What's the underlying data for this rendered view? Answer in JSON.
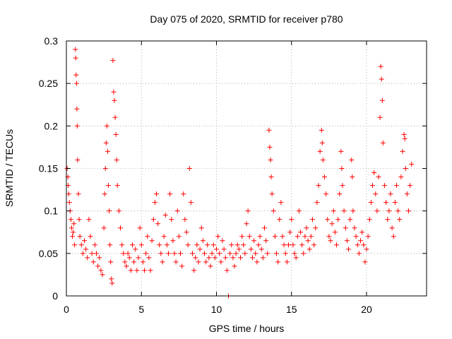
{
  "chart_data": {
    "type": "scatter",
    "title": "Day 075 of 2020, SRMTID for receiver p780",
    "xlabel": "GPS time / hours",
    "ylabel": "SRMTID / TECUs",
    "xlim": [
      0,
      24
    ],
    "ylim": [
      0,
      0.3
    ],
    "xticks": [
      0,
      5,
      10,
      15,
      20
    ],
    "xtick_labels": [
      "0",
      "5",
      "10",
      "15",
      "20"
    ],
    "yticks": [
      0,
      0.05,
      0.1,
      0.15,
      0.2,
      0.25,
      0.3
    ],
    "ytick_labels": [
      "0",
      "0.05",
      "0.1",
      "0.15",
      "0.2",
      "0.25",
      "0.3"
    ],
    "grid": true,
    "marker": "+",
    "series": [
      {
        "name": "SRMTID",
        "color": "#ff0000",
        "points": [
          [
            0.05,
            0.15
          ],
          [
            0.1,
            0.14
          ],
          [
            0.12,
            0.13
          ],
          [
            0.15,
            0.12
          ],
          [
            0.2,
            0.11
          ],
          [
            0.25,
            0.1
          ],
          [
            0.3,
            0.09
          ],
          [
            0.35,
            0.08
          ],
          [
            0.4,
            0.07
          ],
          [
            0.45,
            0.075
          ],
          [
            0.5,
            0.085
          ],
          [
            0.55,
            0.06
          ],
          [
            0.6,
            0.29
          ],
          [
            0.62,
            0.28
          ],
          [
            0.65,
            0.26
          ],
          [
            0.68,
            0.25
          ],
          [
            0.7,
            0.22
          ],
          [
            0.72,
            0.2
          ],
          [
            0.75,
            0.16
          ],
          [
            0.8,
            0.12
          ],
          [
            0.85,
            0.09
          ],
          [
            0.9,
            0.07
          ],
          [
            1.0,
            0.06
          ],
          [
            1.1,
            0.05
          ],
          [
            1.2,
            0.065
          ],
          [
            1.3,
            0.055
          ],
          [
            1.4,
            0.045
          ],
          [
            1.5,
            0.09
          ],
          [
            1.6,
            0.07
          ],
          [
            1.7,
            0.05
          ],
          [
            1.8,
            0.04
          ],
          [
            1.9,
            0.06
          ],
          [
            2.0,
            0.05
          ],
          [
            2.1,
            0.035
          ],
          [
            2.2,
            0.045
          ],
          [
            2.3,
            0.03
          ],
          [
            2.4,
            0.025
          ],
          [
            2.5,
            0.08
          ],
          [
            2.55,
            0.12
          ],
          [
            2.6,
            0.15
          ],
          [
            2.65,
            0.18
          ],
          [
            2.7,
            0.2
          ],
          [
            2.75,
            0.17
          ],
          [
            2.8,
            0.13
          ],
          [
            2.85,
            0.1
          ],
          [
            2.9,
            0.06
          ],
          [
            2.95,
            0.04
          ],
          [
            3.0,
            0.02
          ],
          [
            3.05,
            0.015
          ],
          [
            3.1,
            0.277
          ],
          [
            3.15,
            0.24
          ],
          [
            3.2,
            0.23
          ],
          [
            3.25,
            0.21
          ],
          [
            3.3,
            0.19
          ],
          [
            3.35,
            0.16
          ],
          [
            3.4,
            0.13
          ],
          [
            3.5,
            0.1
          ],
          [
            3.6,
            0.08
          ],
          [
            3.7,
            0.06
          ],
          [
            3.8,
            0.05
          ],
          [
            3.9,
            0.04
          ],
          [
            4.0,
            0.035
          ],
          [
            4.1,
            0.05
          ],
          [
            4.2,
            0.045
          ],
          [
            4.3,
            0.03
          ],
          [
            4.4,
            0.06
          ],
          [
            4.5,
            0.04
          ],
          [
            4.6,
            0.055
          ],
          [
            4.7,
            0.03
          ],
          [
            4.8,
            0.045
          ],
          [
            4.9,
            0.08
          ],
          [
            5.0,
            0.06
          ],
          [
            5.1,
            0.04
          ],
          [
            5.2,
            0.03
          ],
          [
            5.3,
            0.05
          ],
          [
            5.4,
            0.07
          ],
          [
            5.5,
            0.045
          ],
          [
            5.6,
            0.03
          ],
          [
            5.7,
            0.065
          ],
          [
            5.8,
            0.09
          ],
          [
            5.9,
            0.11
          ],
          [
            6.0,
            0.12
          ],
          [
            6.1,
            0.085
          ],
          [
            6.2,
            0.06
          ],
          [
            6.3,
            0.05
          ],
          [
            6.4,
            0.04
          ],
          [
            6.5,
            0.07
          ],
          [
            6.6,
            0.095
          ],
          [
            6.7,
            0.06
          ],
          [
            6.8,
            0.05
          ],
          [
            6.9,
            0.12
          ],
          [
            7.0,
            0.09
          ],
          [
            7.1,
            0.065
          ],
          [
            7.2,
            0.05
          ],
          [
            7.3,
            0.04
          ],
          [
            7.4,
            0.1
          ],
          [
            7.5,
            0.07
          ],
          [
            7.6,
            0.05
          ],
          [
            7.7,
            0.035
          ],
          [
            7.8,
            0.12
          ],
          [
            7.9,
            0.09
          ],
          [
            8.0,
            0.075
          ],
          [
            8.1,
            0.06
          ],
          [
            8.2,
            0.15
          ],
          [
            8.3,
            0.11
          ],
          [
            8.4,
            0.05
          ],
          [
            8.5,
            0.03
          ],
          [
            8.6,
            0.045
          ],
          [
            8.7,
            0.06
          ],
          [
            8.8,
            0.04
          ],
          [
            8.9,
            0.055
          ],
          [
            9.0,
            0.08
          ],
          [
            9.1,
            0.065
          ],
          [
            9.2,
            0.05
          ],
          [
            9.3,
            0.04
          ],
          [
            9.4,
            0.06
          ],
          [
            9.5,
            0.045
          ],
          [
            9.6,
            0.035
          ],
          [
            9.7,
            0.05
          ],
          [
            9.8,
            0.06
          ],
          [
            9.9,
            0.045
          ],
          [
            10.0,
            0.055
          ],
          [
            10.1,
            0.07
          ],
          [
            10.2,
            0.05
          ],
          [
            10.3,
            0.04
          ],
          [
            10.4,
            0.065
          ],
          [
            10.5,
            0.055
          ],
          [
            10.6,
            0.045
          ],
          [
            10.7,
            0.03
          ],
          [
            10.8,
            0.0
          ],
          [
            10.9,
            0.05
          ],
          [
            11.0,
            0.06
          ],
          [
            11.1,
            0.045
          ],
          [
            11.2,
            0.035
          ],
          [
            11.3,
            0.05
          ],
          [
            11.4,
            0.06
          ],
          [
            11.5,
            0.055
          ],
          [
            11.6,
            0.045
          ],
          [
            11.7,
            0.07
          ],
          [
            11.8,
            0.06
          ],
          [
            11.9,
            0.05
          ],
          [
            12.0,
            0.085
          ],
          [
            12.1,
            0.1
          ],
          [
            12.2,
            0.07
          ],
          [
            12.3,
            0.055
          ],
          [
            12.4,
            0.045
          ],
          [
            12.5,
            0.065
          ],
          [
            12.6,
            0.05
          ],
          [
            12.7,
            0.04
          ],
          [
            12.8,
            0.06
          ],
          [
            12.9,
            0.07
          ],
          [
            13.0,
            0.055
          ],
          [
            13.1,
            0.045
          ],
          [
            13.2,
            0.08
          ],
          [
            13.3,
            0.065
          ],
          [
            13.4,
            0.05
          ],
          [
            13.5,
            0.195
          ],
          [
            13.55,
            0.175
          ],
          [
            13.6,
            0.16
          ],
          [
            13.65,
            0.14
          ],
          [
            13.7,
            0.12
          ],
          [
            13.8,
            0.1
          ],
          [
            13.9,
            0.07
          ],
          [
            14.0,
            0.05
          ],
          [
            14.1,
            0.04
          ],
          [
            14.2,
            0.09
          ],
          [
            14.3,
            0.11
          ],
          [
            14.4,
            0.07
          ],
          [
            14.5,
            0.06
          ],
          [
            14.6,
            0.05
          ],
          [
            14.7,
            0.04
          ],
          [
            14.8,
            0.06
          ],
          [
            14.9,
            0.075
          ],
          [
            15.0,
            0.09
          ],
          [
            15.1,
            0.06
          ],
          [
            15.2,
            0.05
          ],
          [
            15.3,
            0.045
          ],
          [
            15.4,
            0.07
          ],
          [
            15.5,
            0.1
          ],
          [
            15.6,
            0.075
          ],
          [
            15.7,
            0.06
          ],
          [
            15.8,
            0.05
          ],
          [
            15.9,
            0.07
          ],
          [
            16.0,
            0.08
          ],
          [
            16.1,
            0.065
          ],
          [
            16.2,
            0.055
          ],
          [
            16.3,
            0.07
          ],
          [
            16.4,
            0.09
          ],
          [
            16.5,
            0.06
          ],
          [
            16.6,
            0.08
          ],
          [
            16.7,
            0.11
          ],
          [
            16.8,
            0.13
          ],
          [
            16.9,
            0.17
          ],
          [
            17.0,
            0.195
          ],
          [
            17.05,
            0.18
          ],
          [
            17.1,
            0.16
          ],
          [
            17.2,
            0.14
          ],
          [
            17.3,
            0.12
          ],
          [
            17.4,
            0.09
          ],
          [
            17.5,
            0.07
          ],
          [
            17.6,
            0.065
          ],
          [
            17.7,
            0.085
          ],
          [
            17.8,
            0.1
          ],
          [
            17.9,
            0.075
          ],
          [
            18.0,
            0.06
          ],
          [
            18.1,
            0.09
          ],
          [
            18.2,
            0.12
          ],
          [
            18.3,
            0.17
          ],
          [
            18.35,
            0.15
          ],
          [
            18.4,
            0.13
          ],
          [
            18.5,
            0.1
          ],
          [
            18.6,
            0.08
          ],
          [
            18.7,
            0.065
          ],
          [
            18.8,
            0.055
          ],
          [
            18.9,
            0.09
          ],
          [
            19.0,
            0.16
          ],
          [
            19.05,
            0.14
          ],
          [
            19.1,
            0.1
          ],
          [
            19.2,
            0.08
          ],
          [
            19.3,
            0.07
          ],
          [
            19.4,
            0.06
          ],
          [
            19.5,
            0.05
          ],
          [
            19.6,
            0.065
          ],
          [
            19.7,
            0.075
          ],
          [
            19.8,
            0.06
          ],
          [
            19.9,
            0.04
          ],
          [
            20.0,
            0.055
          ],
          [
            20.1,
            0.07
          ],
          [
            20.2,
            0.09
          ],
          [
            20.3,
            0.11
          ],
          [
            20.4,
            0.13
          ],
          [
            20.5,
            0.145
          ],
          [
            20.6,
            0.12
          ],
          [
            20.7,
            0.1
          ],
          [
            20.8,
            0.14
          ],
          [
            20.9,
            0.21
          ],
          [
            20.95,
            0.27
          ],
          [
            21.0,
            0.255
          ],
          [
            21.05,
            0.23
          ],
          [
            21.1,
            0.18
          ],
          [
            21.2,
            0.13
          ],
          [
            21.3,
            0.11
          ],
          [
            21.4,
            0.09
          ],
          [
            21.5,
            0.1
          ],
          [
            21.6,
            0.12
          ],
          [
            21.7,
            0.08
          ],
          [
            21.8,
            0.07
          ],
          [
            21.9,
            0.11
          ],
          [
            22.0,
            0.13
          ],
          [
            22.1,
            0.1
          ],
          [
            22.2,
            0.09
          ],
          [
            22.3,
            0.14
          ],
          [
            22.4,
            0.17
          ],
          [
            22.5,
            0.19
          ],
          [
            22.55,
            0.185
          ],
          [
            22.6,
            0.15
          ],
          [
            22.7,
            0.12
          ],
          [
            22.8,
            0.1
          ],
          [
            22.9,
            0.13
          ],
          [
            23.0,
            0.155
          ]
        ]
      }
    ]
  }
}
